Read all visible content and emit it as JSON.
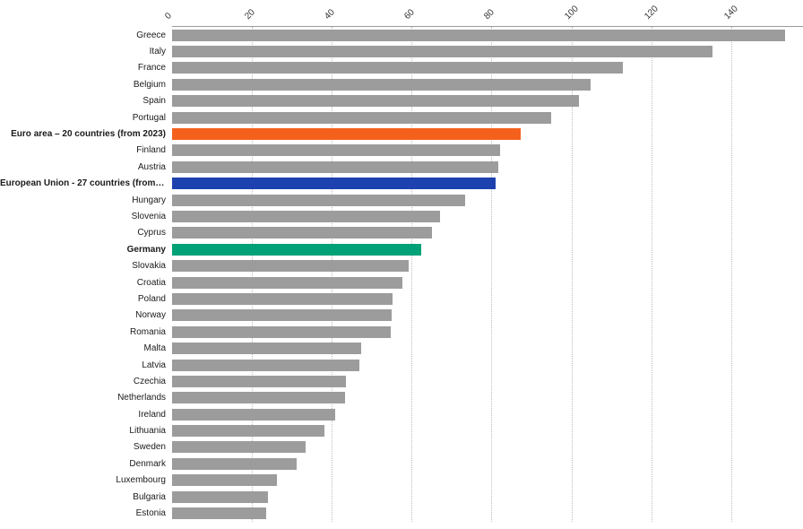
{
  "chart_data": {
    "type": "bar",
    "orientation": "horizontal",
    "title": "",
    "xlabel": "",
    "ylabel": "",
    "legend": "none",
    "grid": "vertical-dotted",
    "axis": {
      "position": "top",
      "min": 0,
      "max": 158,
      "ticks": [
        0,
        20,
        40,
        60,
        80,
        100,
        120,
        140
      ]
    },
    "categories": [
      "Greece",
      "Italy",
      "France",
      "Belgium",
      "Spain",
      "Portugal",
      "Euro area – 20 countries (from 2023)",
      "Finland",
      "Austria",
      "European Union - 27 countries (from 20…",
      "Hungary",
      "Slovenia",
      "Cyprus",
      "Germany",
      "Slovakia",
      "Croatia",
      "Poland",
      "Norway",
      "Romania",
      "Malta",
      "Latvia",
      "Czechia",
      "Netherlands",
      "Ireland",
      "Lithuania",
      "Sweden",
      "Denmark",
      "Luxembourg",
      "Bulgaria",
      "Estonia"
    ],
    "values": [
      153.6,
      135.3,
      113.0,
      104.7,
      101.8,
      94.9,
      87.4,
      82.1,
      81.8,
      81.0,
      73.5,
      67.0,
      65.0,
      62.5,
      59.3,
      57.6,
      55.3,
      55.0,
      54.8,
      47.4,
      46.8,
      43.6,
      43.3,
      40.9,
      38.2,
      33.5,
      31.1,
      26.3,
      24.1,
      23.6
    ],
    "colors": {
      "default": "#9c9c9c",
      "euro_area": "#f4611d",
      "european_union": "#1d41ae",
      "germany": "#00a177"
    },
    "color_overrides": {
      "6": "euro_area",
      "9": "european_union",
      "13": "germany"
    },
    "bold_indexes": [
      6,
      9,
      13
    ]
  }
}
